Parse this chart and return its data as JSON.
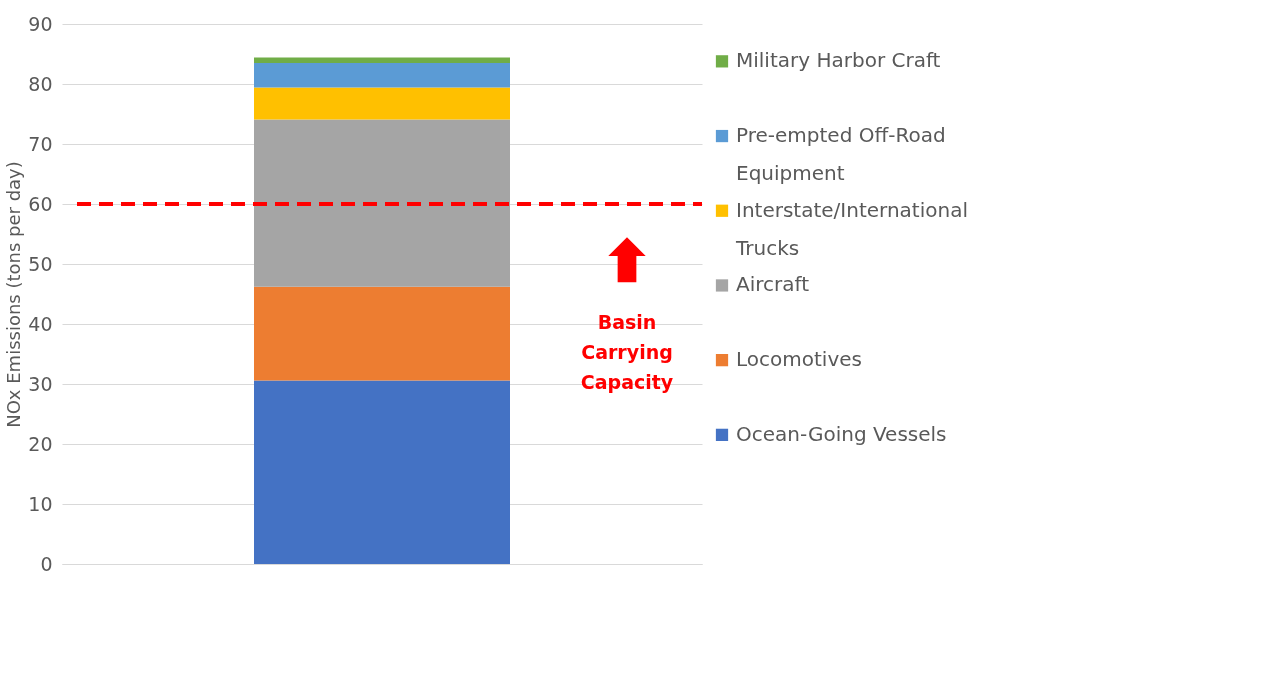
{
  "chart_data": {
    "type": "bar",
    "stacked": true,
    "ylabel": "NOx Emissions (tons per day)",
    "categories": [
      null
    ],
    "series": [
      {
        "name": "Ocean-Going Vessels",
        "color": "#4472c4",
        "values": [
          30.6
        ]
      },
      {
        "name": "Locomotives",
        "color": "#ed7d31",
        "values": [
          15.6
        ]
      },
      {
        "name": "Aircraft",
        "color": "#a5a5a5",
        "values": [
          27.9
        ]
      },
      {
        "name": "Interstate/International Trucks",
        "color": "#ffc000",
        "values": [
          5.3
        ]
      },
      {
        "name": "Pre-empted Off-Road Equipment",
        "color": "#5b9bd5",
        "values": [
          4.1
        ]
      },
      {
        "name": "Military Harbor Craft",
        "color": "#70ad47",
        "values": [
          0.9
        ]
      }
    ],
    "ylim": [
      0,
      90
    ],
    "yticks": [
      0,
      10,
      20,
      30,
      40,
      50,
      60,
      70,
      80,
      90
    ],
    "grid": "y",
    "legend": "right",
    "tick_labels": "y",
    "ref_lines": [
      {
        "axis": "y",
        "value": 60,
        "label": "Basin Carrying Capacity",
        "color": "#ff0000",
        "line_style": "dashed"
      }
    ]
  }
}
